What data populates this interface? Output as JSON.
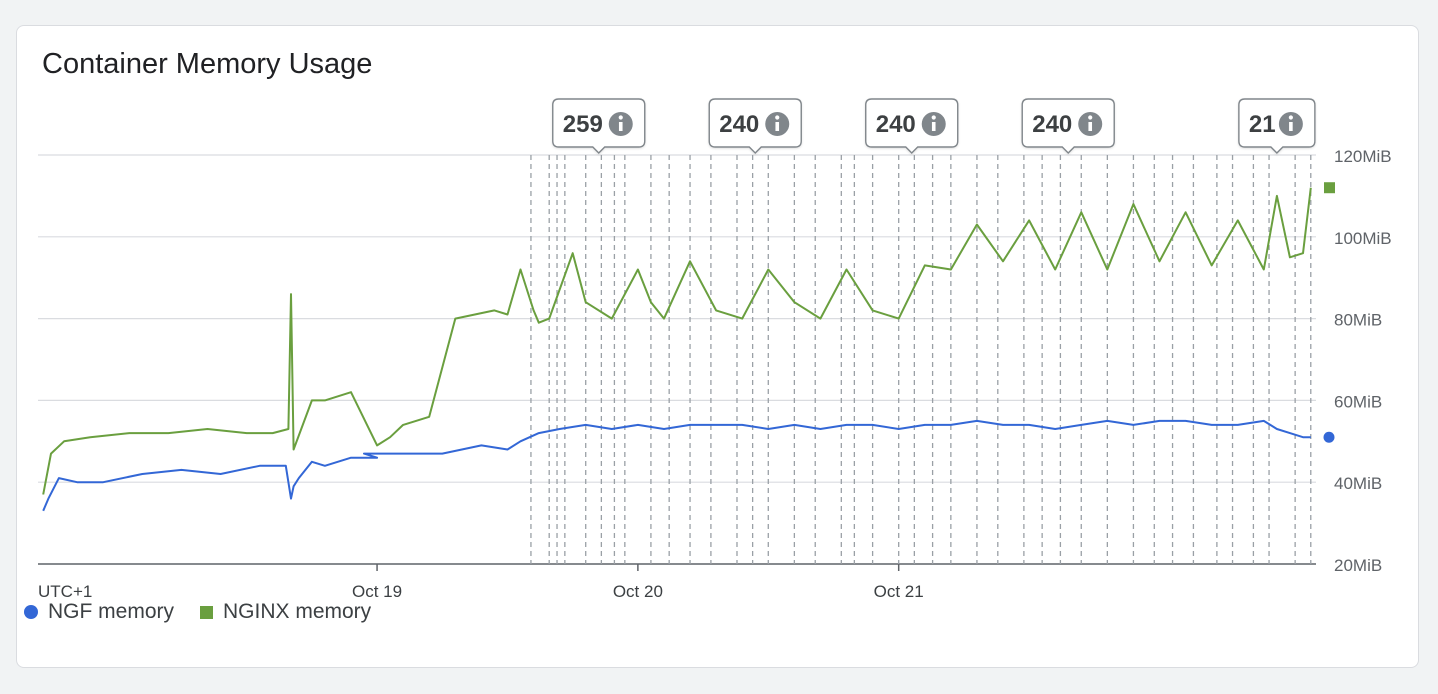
{
  "chart_data": {
    "type": "line",
    "title": "Container Memory Usage",
    "timezone": "UTC+1",
    "x_ticks": [
      "Oct 19",
      "Oct 20",
      "Oct 21"
    ],
    "x_range_days": [
      -1.3,
      3.6
    ],
    "ylim": [
      20,
      120
    ],
    "y_ticks": [
      20,
      40,
      60,
      80,
      100,
      120
    ],
    "y_tick_labels": [
      "20MiB",
      "40MiB",
      "60MiB",
      "80MiB",
      "100MiB",
      "120MiB"
    ],
    "grid": true,
    "legend_position": "bottom-left",
    "series": [
      {
        "name": "NGF memory",
        "color": "#3367d6",
        "marker": "circle",
        "x": [
          -1.28,
          -1.26,
          -1.22,
          -1.15,
          -1.05,
          -0.9,
          -0.75,
          -0.6,
          -0.45,
          -0.35,
          -0.33,
          -0.32,
          -0.3,
          -0.25,
          -0.2,
          -0.1,
          0.0,
          -0.05,
          0.1,
          0.25,
          0.4,
          0.5,
          0.55,
          0.62,
          0.7,
          0.8,
          0.9,
          1.0,
          1.1,
          1.2,
          1.3,
          1.4,
          1.5,
          1.6,
          1.7,
          1.8,
          1.9,
          2.0,
          2.1,
          2.2,
          2.3,
          2.4,
          2.5,
          2.6,
          2.7,
          2.8,
          2.9,
          3.0,
          3.1,
          3.2,
          3.3,
          3.4,
          3.45,
          3.5,
          3.55,
          3.58
        ],
        "y": [
          33,
          36,
          41,
          40,
          40,
          42,
          43,
          42,
          44,
          44,
          36,
          39,
          41,
          45,
          44,
          46,
          46,
          47,
          47,
          47,
          49,
          48,
          50,
          52,
          53,
          54,
          53,
          54,
          53,
          54,
          54,
          54,
          53,
          54,
          53,
          54,
          54,
          53,
          54,
          54,
          55,
          54,
          54,
          53,
          54,
          55,
          54,
          55,
          55,
          54,
          54,
          55,
          53,
          52,
          51,
          51
        ]
      },
      {
        "name": "NGINX memory",
        "color": "#6a9f3f",
        "marker": "square",
        "x": [
          -1.28,
          -1.25,
          -1.2,
          -1.1,
          -0.95,
          -0.8,
          -0.65,
          -0.5,
          -0.4,
          -0.34,
          -0.33,
          -0.32,
          -0.25,
          -0.2,
          -0.1,
          0.0,
          0.05,
          0.1,
          0.2,
          0.3,
          0.45,
          0.5,
          0.55,
          0.6,
          0.62,
          0.66,
          0.75,
          0.8,
          0.9,
          1.0,
          1.05,
          1.1,
          1.2,
          1.3,
          1.4,
          1.5,
          1.6,
          1.7,
          1.8,
          1.9,
          2.0,
          2.1,
          2.2,
          2.3,
          2.4,
          2.5,
          2.6,
          2.7,
          2.8,
          2.9,
          3.0,
          3.1,
          3.2,
          3.3,
          3.4,
          3.45,
          3.5,
          3.55,
          3.58
        ],
        "y": [
          37,
          47,
          50,
          51,
          52,
          52,
          53,
          52,
          52,
          53,
          86,
          48,
          60,
          60,
          62,
          49,
          51,
          54,
          56,
          80,
          82,
          81,
          92,
          82,
          79,
          80,
          96,
          84,
          80,
          92,
          84,
          80,
          94,
          82,
          80,
          92,
          84,
          80,
          92,
          82,
          80,
          93,
          92,
          103,
          94,
          104,
          92,
          106,
          92,
          108,
          94,
          106,
          93,
          104,
          92,
          110,
          95,
          96,
          112
        ]
      }
    ],
    "annotations": [
      {
        "label": "259",
        "x": 0.85
      },
      {
        "label": "240",
        "x": 1.45
      },
      {
        "label": "240",
        "x": 2.05
      },
      {
        "label": "240",
        "x": 2.65
      },
      {
        "label": "21",
        "x": 3.45
      }
    ],
    "event_lines_x": [
      0.59,
      0.66,
      0.69,
      0.72,
      0.8,
      0.86,
      0.91,
      0.95,
      1.05,
      1.12,
      1.2,
      1.28,
      1.38,
      1.44,
      1.5,
      1.6,
      1.68,
      1.78,
      1.83,
      1.9,
      2.0,
      2.06,
      2.13,
      2.2,
      2.3,
      2.38,
      2.48,
      2.55,
      2.62,
      2.7,
      2.8,
      2.9,
      2.98,
      3.05,
      3.13,
      3.22,
      3.28,
      3.36,
      3.42,
      3.52,
      3.58
    ]
  },
  "info_icon": "info-icon"
}
